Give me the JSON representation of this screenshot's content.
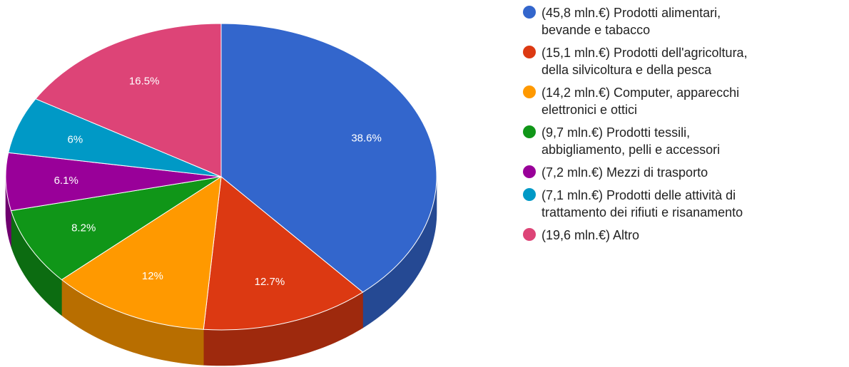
{
  "chart_data": {
    "type": "pie",
    "style": "3d",
    "legend_position": "right",
    "slices": [
      {
        "label": "(45,8 mln.€) Prodotti alimentari,\nbevande e tabacco",
        "value": 45.8,
        "percent_label": "38.6%",
        "color": "#3366cc"
      },
      {
        "label": "(15,1 mln.€) Prodotti dell'agricoltura,\ndella silvicoltura e della pesca",
        "value": 15.1,
        "percent_label": "12.7%",
        "color": "#dc3912"
      },
      {
        "label": "(14,2 mln.€) Computer, apparecchi\nelettronici e ottici",
        "value": 14.2,
        "percent_label": "12%",
        "color": "#ff9900"
      },
      {
        "label": "(9,7 mln.€) Prodotti tessili,\nabbigliamento, pelli e accessori",
        "value": 9.7,
        "percent_label": "8.2%",
        "color": "#109618"
      },
      {
        "label": "(7,2 mln.€) Mezzi di trasporto",
        "value": 7.2,
        "percent_label": "6.1%",
        "color": "#990099"
      },
      {
        "label": "(7,1 mln.€) Prodotti delle attività di\ntrattamento dei rifiuti e risanamento",
        "value": 7.1,
        "percent_label": "6%",
        "color": "#0099c6"
      },
      {
        "label": "(19,6 mln.€) Altro",
        "value": 19.6,
        "percent_label": "16.5%",
        "color": "#dd4477"
      }
    ]
  }
}
